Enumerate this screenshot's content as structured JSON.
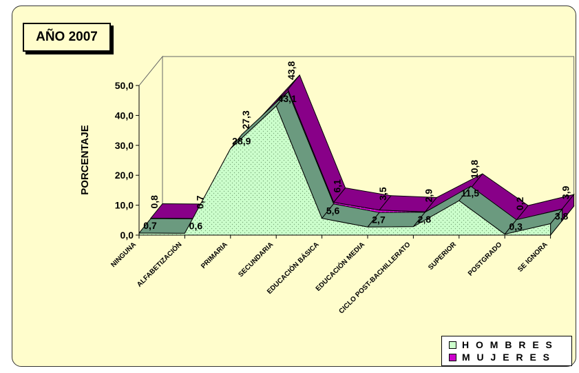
{
  "chart_data": {
    "type": "area",
    "title": "AÑO 2007",
    "ylabel": "PORCENTAJE",
    "xlabel": "",
    "ylim": [
      0,
      50
    ],
    "yticks": [
      "0,0",
      "10,0",
      "20,0",
      "30,0",
      "40,0",
      "50,0"
    ],
    "grid": false,
    "legend_position": "bottom-right",
    "categories": [
      "NINGUNA",
      "ALFABETIZACIÓN",
      "PRIMARIA",
      "SECUNDARIA",
      "EDUCACIÓN BÁSICA",
      "EDUCACIÓN MEDIA",
      "CICLO POST-BACHILLERATO",
      "SUPERIOR",
      "POSTGRADO",
      "SE IGNORA"
    ],
    "series": [
      {
        "name": "M U J E R E S",
        "values": [
          0.8,
          0.7,
          27.3,
          43.8,
          6.1,
          3.5,
          2.9,
          10.8,
          0.2,
          3.9
        ],
        "labels": [
          "0,8",
          "0,7",
          "27,3",
          "43,8",
          "6,1",
          "3,5",
          "2,9",
          "10,8",
          "0,2",
          "3,9"
        ],
        "color": "#cc00cc"
      },
      {
        "name": "H O M B R E S",
        "values": [
          0.7,
          0.6,
          28.9,
          43.1,
          5.6,
          2.7,
          2.8,
          11.5,
          0.3,
          3.8
        ],
        "labels": [
          "0,7",
          "0,6",
          "28,9",
          "43,1",
          "5,6",
          "2,7",
          "2,8",
          "11,5",
          "0,3",
          "3,8"
        ],
        "color": "#ccffcc"
      }
    ]
  }
}
